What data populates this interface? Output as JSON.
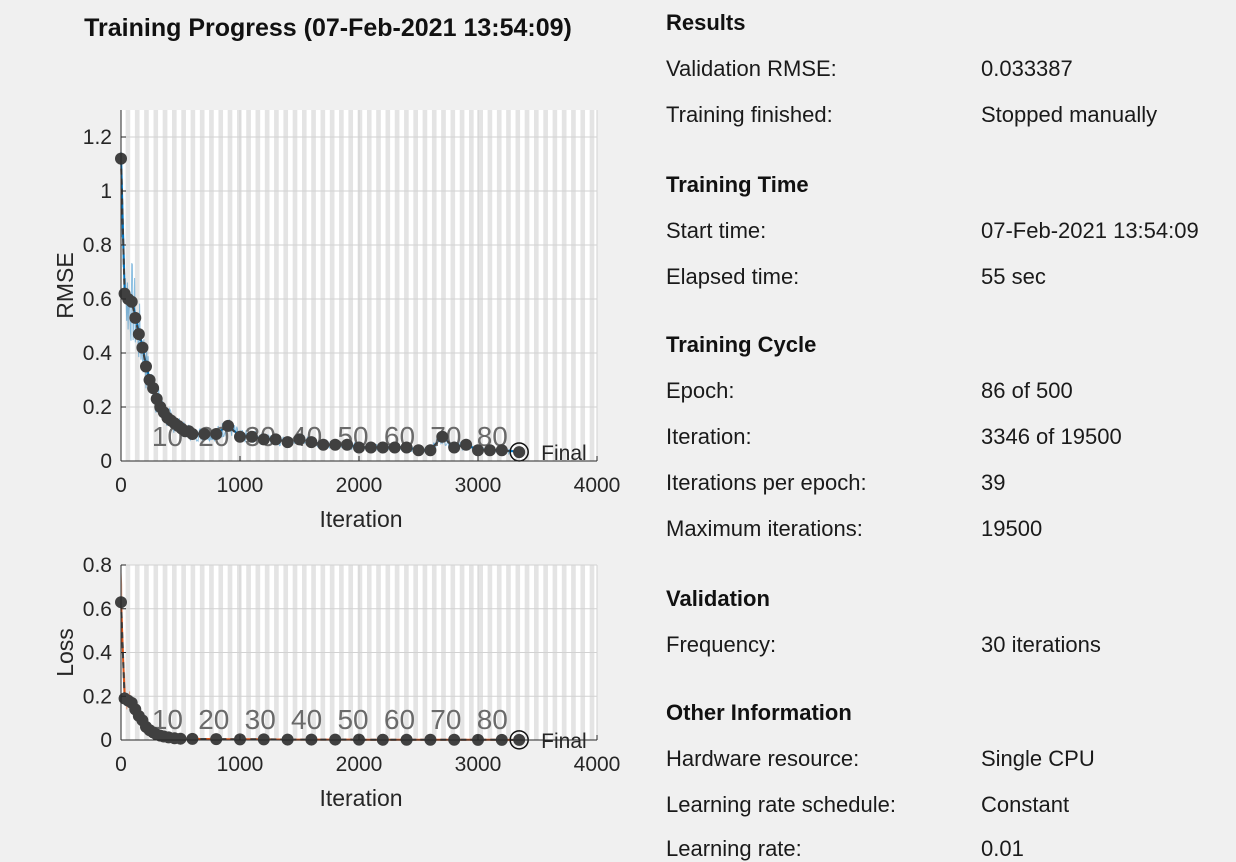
{
  "plot_title": "Training Progress (07-Feb-2021 13:54:09)",
  "colors": {
    "rmse_training": "#0072bd",
    "loss_training": "#d95319",
    "validation": "#404040",
    "background": "#f0f0f0"
  },
  "chart_data": [
    {
      "type": "line",
      "name": "rmse",
      "xlabel": "Iteration",
      "ylabel": "RMSE",
      "xlim": [
        0,
        4000
      ],
      "ylim": [
        0,
        1.3
      ],
      "xticks": [
        "0",
        "1000",
        "2000",
        "3000",
        "4000"
      ],
      "yticks": [
        "0",
        "0.2",
        "0.4",
        "0.6",
        "0.8",
        "1",
        "1.2"
      ],
      "epoch_labels": [
        "10",
        "20",
        "30",
        "40",
        "50",
        "60",
        "70",
        "80"
      ],
      "final_label": "Final",
      "final": {
        "x": 3346,
        "y": 0.033387
      },
      "validation": {
        "x": [
          0,
          30,
          60,
          90,
          120,
          150,
          180,
          210,
          240,
          270,
          300,
          330,
          360,
          390,
          420,
          450,
          480,
          510,
          540,
          570,
          600,
          700,
          800,
          900,
          1000,
          1100,
          1200,
          1300,
          1400,
          1500,
          1600,
          1700,
          1800,
          1900,
          2000,
          2100,
          2200,
          2300,
          2400,
          2500,
          2600,
          2700,
          2800,
          2900,
          3000,
          3100,
          3200,
          3346
        ],
        "y": [
          1.12,
          0.62,
          0.6,
          0.59,
          0.53,
          0.47,
          0.42,
          0.35,
          0.3,
          0.27,
          0.23,
          0.2,
          0.18,
          0.16,
          0.15,
          0.14,
          0.13,
          0.12,
          0.11,
          0.11,
          0.1,
          0.1,
          0.1,
          0.13,
          0.09,
          0.09,
          0.08,
          0.08,
          0.07,
          0.08,
          0.07,
          0.06,
          0.06,
          0.06,
          0.05,
          0.05,
          0.05,
          0.05,
          0.05,
          0.04,
          0.04,
          0.09,
          0.05,
          0.06,
          0.04,
          0.04,
          0.04,
          0.033
        ]
      }
    },
    {
      "type": "line",
      "name": "loss",
      "xlabel": "Iteration",
      "ylabel": "Loss",
      "xlim": [
        0,
        4000
      ],
      "ylim": [
        0,
        0.8
      ],
      "xticks": [
        "0",
        "1000",
        "2000",
        "3000",
        "4000"
      ],
      "yticks": [
        "0",
        "0.2",
        "0.4",
        "0.6",
        "0.8"
      ],
      "epoch_labels": [
        "10",
        "20",
        "30",
        "40",
        "50",
        "60",
        "70",
        "80"
      ],
      "final_label": "Final",
      "final": {
        "x": 3346,
        "y": 0.0006
      },
      "validation": {
        "x": [
          0,
          30,
          60,
          90,
          120,
          150,
          180,
          210,
          240,
          270,
          300,
          330,
          360,
          400,
          450,
          500,
          600,
          800,
          1000,
          1200,
          1400,
          1600,
          1800,
          2000,
          2200,
          2400,
          2600,
          2800,
          3000,
          3200,
          3346
        ],
        "y": [
          0.63,
          0.19,
          0.18,
          0.17,
          0.14,
          0.11,
          0.09,
          0.06,
          0.045,
          0.035,
          0.025,
          0.02,
          0.016,
          0.012,
          0.008,
          0.006,
          0.005,
          0.004,
          0.003,
          0.003,
          0.002,
          0.002,
          0.002,
          0.0015,
          0.0012,
          0.001,
          0.001,
          0.001,
          0.0008,
          0.0007,
          0.0006
        ]
      }
    }
  ],
  "info": {
    "results": {
      "heading": "Results",
      "rows": [
        {
          "label": "Validation RMSE:",
          "value": "0.033387"
        },
        {
          "label": "Training finished:",
          "value": "Stopped manually"
        }
      ]
    },
    "training_time": {
      "heading": "Training Time",
      "rows": [
        {
          "label": "Start time:",
          "value": "07-Feb-2021 13:54:09"
        },
        {
          "label": "Elapsed time:",
          "value": "55 sec"
        }
      ]
    },
    "training_cycle": {
      "heading": "Training Cycle",
      "rows": [
        {
          "label": "Epoch:",
          "value": "86 of 500"
        },
        {
          "label": "Iteration:",
          "value": "3346 of 19500"
        },
        {
          "label": "Iterations per epoch:",
          "value": "39"
        },
        {
          "label": "Maximum iterations:",
          "value": "19500"
        }
      ]
    },
    "validation": {
      "heading": "Validation",
      "rows": [
        {
          "label": "Frequency:",
          "value": "30 iterations"
        }
      ]
    },
    "other": {
      "heading": "Other Information",
      "rows": [
        {
          "label": "Hardware resource:",
          "value": "Single CPU"
        },
        {
          "label": "Learning rate schedule:",
          "value": "Constant"
        },
        {
          "label": "Learning rate:",
          "value": "0.01"
        }
      ]
    }
  }
}
